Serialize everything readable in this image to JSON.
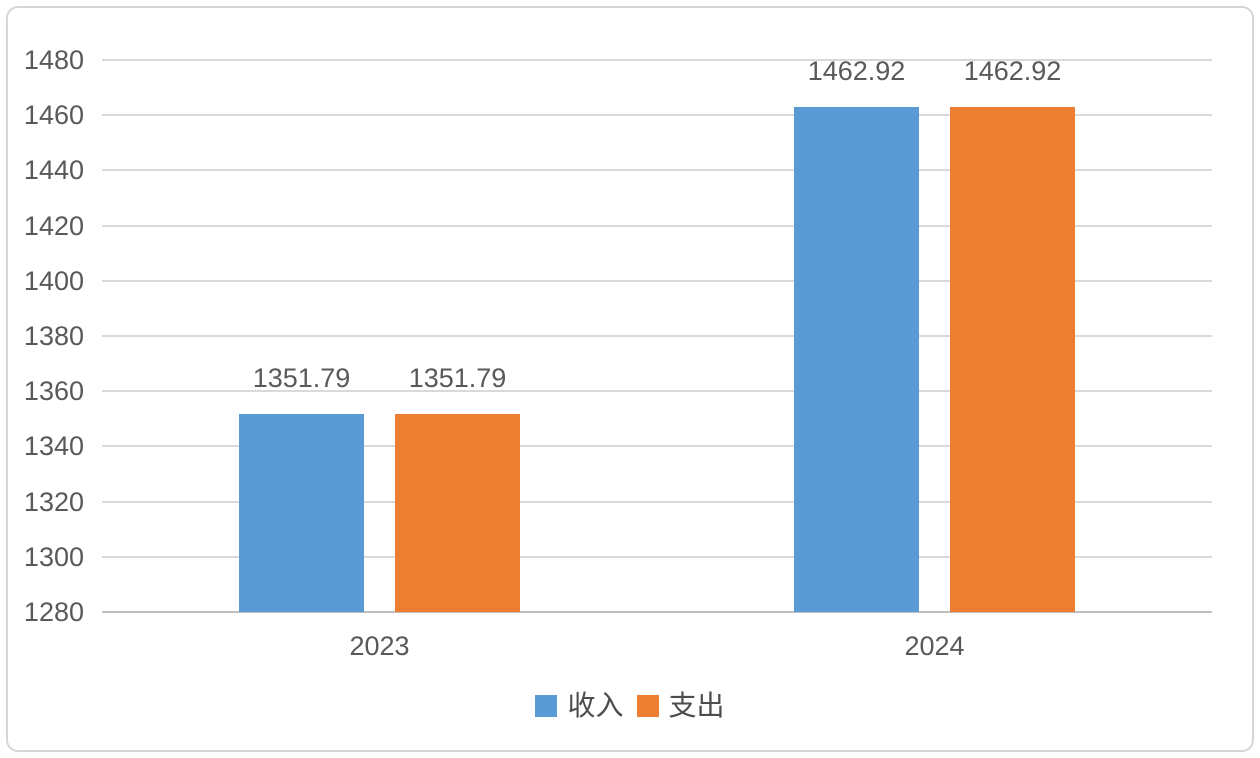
{
  "chart_data": {
    "type": "bar",
    "title": "",
    "xlabel": "",
    "ylabel": "",
    "categories": [
      "2023",
      "2024"
    ],
    "series": [
      {
        "key": "income",
        "name": "收入",
        "color": "#5B9BD5",
        "values": [
          1351.79,
          1462.92
        ],
        "labels": [
          "1351.79",
          "1462.92"
        ]
      },
      {
        "key": "expense",
        "name": "支出",
        "color": "#ED7D31",
        "values": [
          1351.79,
          1462.92
        ],
        "labels": [
          "1351.79",
          "1462.92"
        ]
      }
    ],
    "ylim": [
      1280,
      1480
    ],
    "yticks": [
      1280,
      1300,
      1320,
      1340,
      1360,
      1380,
      1400,
      1420,
      1440,
      1460,
      1480
    ],
    "grid": true,
    "legend_position": "bottom",
    "colors": {
      "tick_text": "#595959",
      "data_label_text": "#595959",
      "gridline": "#D9D9D9",
      "axis_line": "#BFBFBF",
      "frame_border": "#D6D6D6",
      "background": "#FFFFFF"
    }
  }
}
